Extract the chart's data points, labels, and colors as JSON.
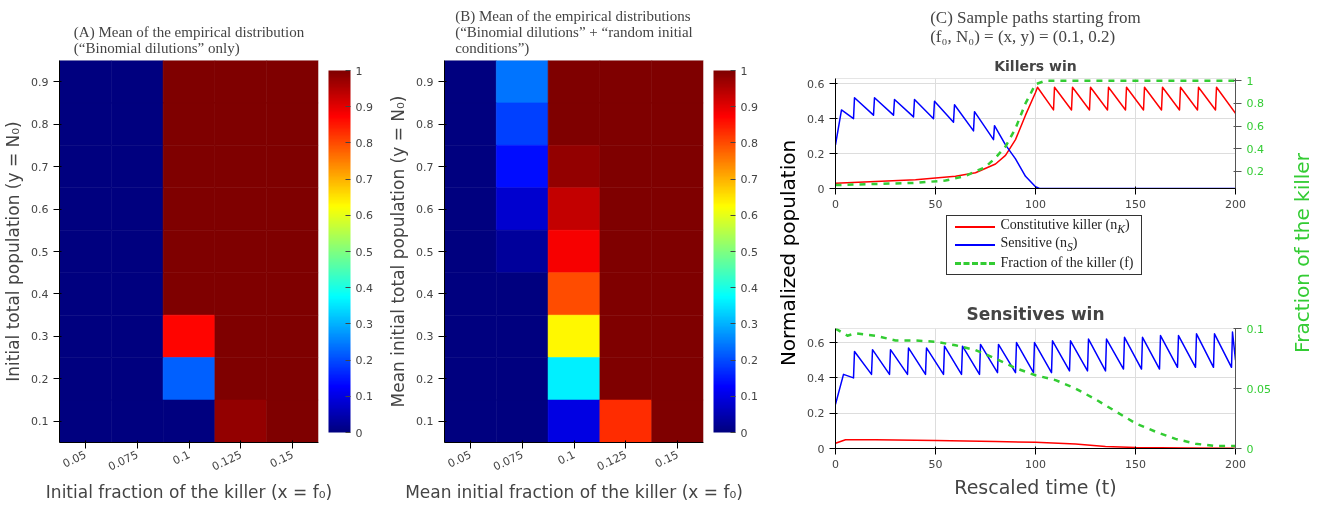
{
  "chart_data": [
    {
      "type": "heatmap",
      "title": "(A) Mean of the empirical distribution\n(“Binomial dilutions” only)",
      "xlabel": "Initial fraction of the killer (x = f₀)",
      "ylabel": "Initial total population (y = N₀)",
      "categories": [
        "0.05",
        "0.075",
        "0.1",
        "0.125",
        "0.15"
      ],
      "y_categories": [
        "0.9",
        "0.8",
        "0.7",
        "0.6",
        "0.5",
        "0.4",
        "0.3",
        "0.2",
        "0.1"
      ],
      "cells": [
        [
          0,
          0,
          1,
          1,
          1
        ],
        [
          0,
          0,
          1,
          1,
          1
        ],
        [
          0,
          0,
          1,
          1,
          1
        ],
        [
          0,
          0,
          1,
          1,
          1
        ],
        [
          0,
          0,
          1,
          1,
          1
        ],
        [
          0,
          0,
          1,
          1,
          1
        ],
        [
          0,
          0,
          0.87,
          1,
          1
        ],
        [
          0,
          0,
          0.22,
          1,
          1
        ],
        [
          0,
          0,
          0,
          0.98,
          1
        ]
      ],
      "clim": [
        0,
        1
      ],
      "cticks": [
        0,
        0.1,
        0.2,
        0.3,
        0.4,
        0.5,
        0.6,
        0.7,
        0.8,
        0.9,
        1
      ]
    },
    {
      "type": "heatmap",
      "title": "(B) Mean of the empirical distributions\n(“Binomial dilutions” + “random initial\nconditions”)",
      "xlabel": "Mean initial fraction of the killer (x = f₀)",
      "ylabel": "Mean initial total population (y = N₀)",
      "categories": [
        "0.05",
        "0.075",
        "0.1",
        "0.125",
        "0.15"
      ],
      "y_categories": [
        "0.9",
        "0.8",
        "0.7",
        "0.6",
        "0.5",
        "0.4",
        "0.3",
        "0.2",
        "0.1"
      ],
      "cells": [
        [
          0,
          0.24,
          1,
          1,
          1
        ],
        [
          0,
          0.19,
          1,
          1,
          1
        ],
        [
          0,
          0.14,
          0.98,
          1,
          1
        ],
        [
          0,
          0.08,
          0.93,
          1,
          1
        ],
        [
          0,
          0.03,
          0.88,
          1,
          1
        ],
        [
          0,
          0,
          0.8,
          1,
          1
        ],
        [
          0,
          0,
          0.63,
          1,
          1
        ],
        [
          0,
          0,
          0.36,
          1,
          1
        ],
        [
          0,
          0,
          0.1,
          0.83,
          1
        ]
      ],
      "clim": [
        0,
        1
      ],
      "cticks": [
        0,
        0.1,
        0.2,
        0.3,
        0.4,
        0.5,
        0.6,
        0.7,
        0.8,
        0.9,
        1
      ]
    },
    {
      "type": "line",
      "title": "(C) Sample paths starting from\n(f₀, N₀) = (x, y) = (0.1, 0.2)",
      "subtitle": "Killers win",
      "ylabel": "Normalized population",
      "y2label": "Fraction of the killer",
      "xlim": [
        0,
        200
      ],
      "xticks": [
        0,
        50,
        100,
        150,
        200
      ],
      "ylim": [
        0,
        0.63
      ],
      "yticks": [
        0,
        0.2,
        0.4,
        0.6
      ],
      "y2lim": [
        0.05,
        1.02
      ],
      "y2ticks": [
        0.2,
        0.4,
        0.6,
        0.8,
        1
      ],
      "grid": true,
      "legend": "bottom",
      "series": [
        {
          "name": "Constitutive killer (n$_{K}$)",
          "color": "#ff0000",
          "x": [
            0,
            20,
            40,
            60,
            70,
            80,
            85,
            90,
            95,
            100,
            101,
            109,
            109.5,
            118,
            118.5,
            127,
            127.5,
            136,
            136.5,
            145,
            145.5,
            154,
            154.5,
            163,
            163.5,
            172,
            172.5,
            181,
            181.5,
            190,
            190.5,
            200
          ],
          "values": [
            0.03,
            0.04,
            0.05,
            0.07,
            0.09,
            0.14,
            0.19,
            0.28,
            0.42,
            0.55,
            0.58,
            0.45,
            0.58,
            0.45,
            0.58,
            0.45,
            0.58,
            0.45,
            0.58,
            0.45,
            0.58,
            0.45,
            0.58,
            0.45,
            0.58,
            0.45,
            0.58,
            0.45,
            0.58,
            0.45,
            0.58,
            0.43
          ]
        },
        {
          "name": "Sensitive (n$_{S}$)",
          "color": "#0000ff",
          "x": [
            0,
            3,
            9,
            9.5,
            19,
            19.5,
            29,
            29.5,
            39,
            39.5,
            49,
            49.5,
            59,
            59.5,
            69,
            69.5,
            79,
            79.5,
            85,
            90,
            95,
            100,
            102,
            200
          ],
          "values": [
            0.25,
            0.45,
            0.4,
            0.52,
            0.42,
            0.52,
            0.42,
            0.51,
            0.41,
            0.51,
            0.4,
            0.5,
            0.38,
            0.48,
            0.33,
            0.44,
            0.28,
            0.36,
            0.25,
            0.17,
            0.07,
            0.01,
            0,
            0
          ]
        },
        {
          "name": "Fraction of the killer (f)",
          "color": "#33cc33",
          "axis": "y2",
          "line_style": "dashed",
          "x": [
            0,
            20,
            40,
            55,
            65,
            75,
            80,
            85,
            90,
            95,
            100,
            105,
            200
          ],
          "values": [
            0.08,
            0.09,
            0.1,
            0.12,
            0.16,
            0.24,
            0.32,
            0.42,
            0.58,
            0.8,
            0.97,
            1,
            1
          ]
        }
      ]
    },
    {
      "type": "line",
      "title": "Sensitives win",
      "xlabel": "Rescaled time (t)",
      "xlim": [
        0,
        200
      ],
      "xticks": [
        0,
        50,
        100,
        150,
        200
      ],
      "ylim": [
        0,
        0.68
      ],
      "yticks": [
        0,
        0.2,
        0.4,
        0.6
      ],
      "y2lim": [
        0,
        0.1
      ],
      "y2ticks": [
        0,
        0.05,
        0.1
      ],
      "grid": true,
      "series": [
        {
          "color": "#ff0000",
          "x": [
            0,
            5,
            20,
            50,
            80,
            100,
            120,
            135,
            150,
            175,
            200
          ],
          "values": [
            0.03,
            0.05,
            0.05,
            0.045,
            0.04,
            0.035,
            0.025,
            0.012,
            0.006,
            0.003,
            0.002
          ]
        },
        {
          "color": "#0000ff",
          "x": [
            0,
            4,
            9,
            9.5,
            18,
            18.5,
            27,
            27.5,
            36,
            36.5,
            45,
            45.5,
            54,
            54.5,
            63,
            63.5,
            72,
            72.5,
            81,
            81.5,
            90,
            90.5,
            99,
            99.5,
            108,
            108.5,
            117,
            117.5,
            126,
            126.5,
            135,
            135.5,
            144,
            144.5,
            153,
            153.5,
            162,
            162.5,
            171,
            171.5,
            180,
            180.5,
            189,
            189.5,
            198,
            198.5,
            200
          ],
          "values": [
            0.25,
            0.42,
            0.4,
            0.55,
            0.42,
            0.56,
            0.42,
            0.56,
            0.42,
            0.57,
            0.42,
            0.57,
            0.42,
            0.58,
            0.42,
            0.58,
            0.42,
            0.59,
            0.43,
            0.59,
            0.43,
            0.6,
            0.43,
            0.6,
            0.43,
            0.61,
            0.44,
            0.61,
            0.44,
            0.62,
            0.44,
            0.62,
            0.45,
            0.63,
            0.45,
            0.63,
            0.45,
            0.64,
            0.46,
            0.64,
            0.46,
            0.65,
            0.46,
            0.65,
            0.46,
            0.66,
            0.5
          ]
        },
        {
          "color": "#33cc33",
          "axis": "y2",
          "line_style": "dashed",
          "x": [
            0,
            3,
            6,
            10,
            20,
            30,
            40,
            50,
            60,
            70,
            80,
            90,
            100,
            110,
            120,
            130,
            140,
            150,
            160,
            170,
            180,
            190,
            200
          ],
          "values": [
            0.1,
            0.097,
            0.094,
            0.096,
            0.094,
            0.09,
            0.09,
            0.089,
            0.086,
            0.082,
            0.075,
            0.067,
            0.061,
            0.057,
            0.05,
            0.041,
            0.031,
            0.021,
            0.014,
            0.008,
            0.004,
            0.002,
            0.002
          ]
        }
      ]
    }
  ]
}
